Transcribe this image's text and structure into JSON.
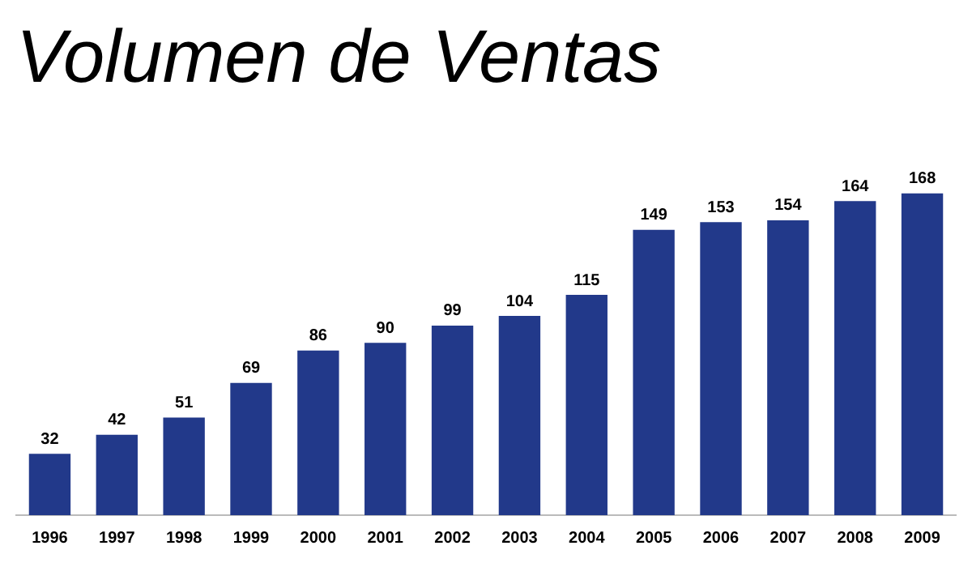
{
  "chart_data": {
    "type": "bar",
    "title": "Volumen de Ventas",
    "categories": [
      "1996",
      "1997",
      "1998",
      "1999",
      "2000",
      "2001",
      "2002",
      "2003",
      "2004",
      "2005",
      "2006",
      "2007",
      "2008",
      "2009"
    ],
    "values": [
      32,
      42,
      51,
      69,
      86,
      90,
      99,
      104,
      115,
      149,
      153,
      154,
      164,
      168
    ],
    "color": "#22398a",
    "data_labels": true,
    "grid": false,
    "legend": false
  }
}
